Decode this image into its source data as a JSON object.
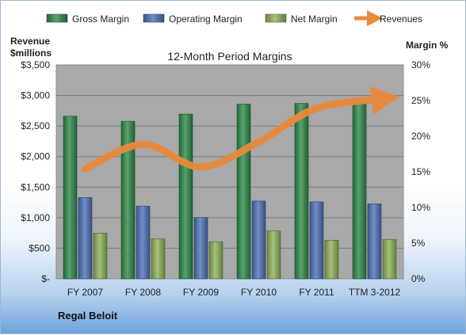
{
  "chart_data": {
    "type": "bar",
    "title": "12-Month Period Margins",
    "company": "Regal Beloit",
    "left_axis_label": [
      "Revenue",
      "$millions"
    ],
    "right_axis_label": "Margin %",
    "categories": [
      "FY 2007",
      "FY 2008",
      "FY 2009",
      "FY 2010",
      "FY 2011",
      "TTM 3-2012"
    ],
    "left_ticks": [
      "$-",
      "$500",
      "$1,000",
      "$1,500",
      "$2,000",
      "$2,500",
      "$3,000",
      "$3,500"
    ],
    "right_ticks": [
      "0%",
      "5%",
      "10%",
      "15%",
      "20%",
      "25%",
      "30%"
    ],
    "ylim_left": [
      0,
      3500
    ],
    "ylim_right": [
      0,
      30
    ],
    "series": [
      {
        "name": "Gross Margin",
        "type": "bar",
        "axis": "right",
        "color": "#2e8b4a",
        "values": [
          22.8,
          22.1,
          23.1,
          24.5,
          24.6,
          24.6
        ]
      },
      {
        "name": "Operating Margin",
        "type": "bar",
        "axis": "right",
        "color": "#4f72b8",
        "values": [
          11.4,
          10.2,
          8.6,
          10.9,
          10.8,
          10.5
        ]
      },
      {
        "name": "Net Margin",
        "type": "bar",
        "axis": "right",
        "color": "#8fb35a",
        "values": [
          6.4,
          5.6,
          5.2,
          6.7,
          5.4,
          5.5
        ]
      },
      {
        "name": "Revenues",
        "type": "line",
        "axis": "left",
        "color": "#e98a3c",
        "values": [
          1800,
          2200,
          1830,
          2240,
          2790,
          2950
        ]
      }
    ],
    "grid": true,
    "legend_position": "top"
  }
}
